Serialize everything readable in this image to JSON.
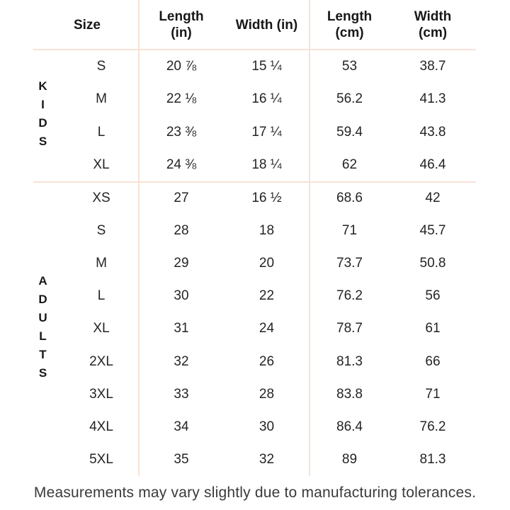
{
  "page": {
    "background": "#ffffff",
    "line_color": "#f9e2d7",
    "header_text_color": "#171717",
    "value_text_color": "#242424",
    "footer_text_color": "#3a3a3a"
  },
  "table": {
    "headers": {
      "size": {
        "line1": "Size",
        "line2": ""
      },
      "length_in": {
        "line1": "Length",
        "line2": "(in)"
      },
      "width_in": {
        "line1": "Width (in)",
        "line2": ""
      },
      "length_cm": {
        "line1": "Length",
        "line2": "(cm)"
      },
      "width_cm": {
        "line1": "Width",
        "line2": "(cm)"
      }
    }
  },
  "chart_data": {
    "type": "table",
    "columns": [
      "Size",
      "Length (in)",
      "Width (in)",
      "Length (cm)",
      "Width (cm)"
    ],
    "sections": [
      {
        "group": "KIDS",
        "rows": [
          [
            "S",
            "20 ⅞",
            "15 ¼",
            "53",
            "38.7"
          ],
          [
            "M",
            "22 ⅛",
            "16 ¼",
            "56.2",
            "41.3"
          ],
          [
            "L",
            "23 ⅜",
            "17 ¼",
            "59.4",
            "43.8"
          ],
          [
            "XL",
            "24 ⅜",
            "18 ¼",
            "62",
            "46.4"
          ]
        ]
      },
      {
        "group": "ADULTS",
        "rows": [
          [
            "XS",
            "27",
            "16 ½",
            "68.6",
            "42"
          ],
          [
            "S",
            "28",
            "18",
            "71",
            "45.7"
          ],
          [
            "M",
            "29",
            "20",
            "73.7",
            "50.8"
          ],
          [
            "L",
            "30",
            "22",
            "76.2",
            "56"
          ],
          [
            "XL",
            "31",
            "24",
            "78.7",
            "61"
          ],
          [
            "2XL",
            "32",
            "26",
            "81.3",
            "66"
          ],
          [
            "3XL",
            "33",
            "28",
            "83.8",
            "71"
          ],
          [
            "4XL",
            "34",
            "30",
            "86.4",
            "76.2"
          ],
          [
            "5XL",
            "35",
            "32",
            "89",
            "81.3"
          ]
        ]
      }
    ]
  },
  "footer": {
    "note": "Measurements may vary slightly due to manufacturing tolerances."
  }
}
